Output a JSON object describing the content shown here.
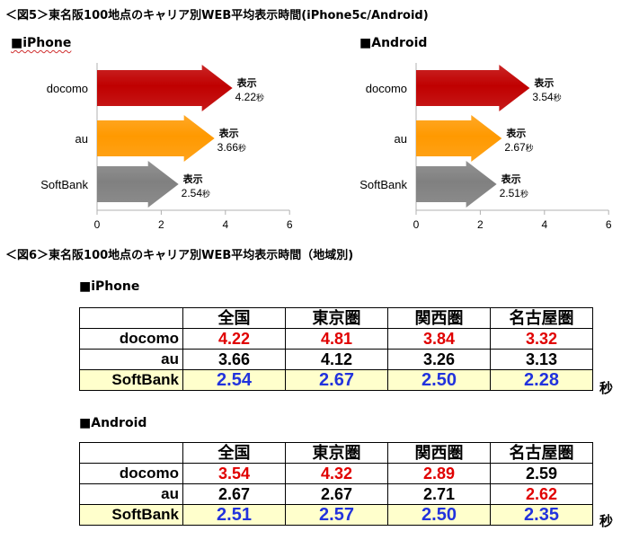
{
  "fig5_title": "＜図5＞東名阪100地点のキャリア別WEB平均表示時間(iPhone5c/Android)",
  "fig6_title": "＜図6＞東名阪100地点のキャリア別WEB平均表示時間（地域別)",
  "chart_data": [
    {
      "type": "bar",
      "orientation": "horizontal",
      "title": "■iPhone",
      "categories": [
        "docomo",
        "au",
        "SoftBank"
      ],
      "values": [
        4.22,
        3.66,
        2.54
      ],
      "value_label_prefix": "表示",
      "value_label_unit": "秒",
      "xlim": [
        0,
        6
      ],
      "xticks": [
        0,
        2,
        4,
        6
      ],
      "colors": [
        "#c00000",
        "#ff9900",
        "#808080"
      ]
    },
    {
      "type": "bar",
      "orientation": "horizontal",
      "title": "■Android",
      "categories": [
        "docomo",
        "au",
        "SoftBank"
      ],
      "values": [
        3.54,
        2.67,
        2.51
      ],
      "value_label_prefix": "表示",
      "value_label_unit": "秒",
      "xlim": [
        0,
        6
      ],
      "xticks": [
        0,
        2,
        4,
        6
      ],
      "colors": [
        "#c00000",
        "#ff9900",
        "#808080"
      ]
    },
    {
      "type": "table",
      "title": "■iPhone",
      "columns": [
        "全国",
        "東京圏",
        "関西圏",
        "名古屋圏"
      ],
      "rows": [
        {
          "label": "docomo",
          "values": [
            "4.22",
            "4.81",
            "3.84",
            "3.32"
          ],
          "colors": [
            "#e00000",
            "#e00000",
            "#e00000",
            "#e00000"
          ]
        },
        {
          "label": "au",
          "values": [
            "3.66",
            "4.12",
            "3.26",
            "3.13"
          ],
          "colors": [
            "#000000",
            "#000000",
            "#000000",
            "#000000"
          ]
        },
        {
          "label": "SoftBank",
          "values": [
            "2.54",
            "2.67",
            "2.50",
            "2.28"
          ],
          "colors": [
            "#2233dd",
            "#2233dd",
            "#2233dd",
            "#2233dd"
          ]
        }
      ],
      "unit": "秒"
    },
    {
      "type": "table",
      "title": "■Android",
      "columns": [
        "全国",
        "東京圏",
        "関西圏",
        "名古屋圏"
      ],
      "rows": [
        {
          "label": "docomo",
          "values": [
            "3.54",
            "4.32",
            "2.89",
            "2.59"
          ],
          "colors": [
            "#e00000",
            "#e00000",
            "#e00000",
            "#000000"
          ]
        },
        {
          "label": "au",
          "values": [
            "2.67",
            "2.67",
            "2.71",
            "2.62"
          ],
          "colors": [
            "#000000",
            "#000000",
            "#000000",
            "#e00000"
          ]
        },
        {
          "label": "SoftBank",
          "values": [
            "2.51",
            "2.57",
            "2.50",
            "2.35"
          ],
          "colors": [
            "#2233dd",
            "#2233dd",
            "#2233dd",
            "#2233dd"
          ]
        }
      ],
      "unit": "秒"
    }
  ]
}
